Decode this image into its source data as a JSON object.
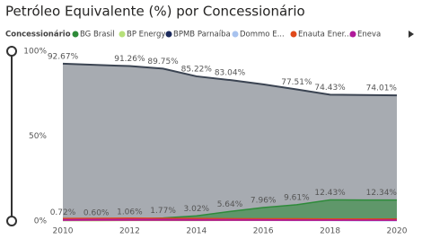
{
  "chart_data": {
    "type": "area",
    "title": "Petróleo Equivalente (%) por Concessionário",
    "legend_title": "Concessionário",
    "x": [
      2010,
      2011,
      2012,
      2013,
      2014,
      2015,
      2016,
      2017,
      2018,
      2019,
      2020
    ],
    "xlim": [
      2010,
      2020
    ],
    "xticks": [
      2010,
      2012,
      2014,
      2016,
      2018,
      2020
    ],
    "ylim": [
      0,
      100
    ],
    "yticks": [
      {
        "value": 0,
        "label": "0%"
      },
      {
        "value": 50,
        "label": "50%"
      },
      {
        "value": 100,
        "label": "100%"
      }
    ],
    "series": [
      {
        "color": "#3b4452",
        "values": [
          92.67,
          91.9,
          91.26,
          89.75,
          85.22,
          83.04,
          80.5,
          77.51,
          74.43,
          74.2,
          74.01
        ],
        "value_labels": [
          "92.67%",
          null,
          "91.26%",
          "89.75%",
          "85.22%",
          "83.04%",
          null,
          "77.51%",
          "74.43%",
          null,
          "74.01%"
        ]
      },
      {
        "name": "BG Brasil",
        "color": "#2e8b3a",
        "values": [
          0.72,
          0.6,
          1.06,
          1.77,
          3.02,
          5.64,
          7.96,
          9.61,
          12.43,
          12.4,
          12.34
        ],
        "value_labels": [
          "0.72%",
          "0.60%",
          "1.06%",
          "1.77%",
          "3.02%",
          "5.64%",
          "7.96%",
          "9.61%",
          "12.43%",
          null,
          "12.34%"
        ]
      },
      {
        "name": "BP Energy",
        "color": "#b6e07a",
        "values": [
          0.2,
          0.2,
          0.3,
          0.3,
          0.3,
          0.4,
          0.4,
          0.5,
          0.5,
          0.6,
          0.6
        ]
      },
      {
        "name": "BPMB Parnaíba",
        "color": "#1b2a5c",
        "values": [
          0.5,
          0.8,
          1.0,
          1.1,
          1.2,
          1.2,
          1.1,
          1.0,
          1.0,
          1.1,
          1.2
        ]
      },
      {
        "name": "Dommo E...",
        "color": "#a8c3ef",
        "values": [
          0.3,
          0.4,
          0.5,
          0.6,
          0.6,
          0.5,
          0.4,
          0.3,
          0.3,
          0.2,
          0.2
        ]
      },
      {
        "name": "Enauta Ener...",
        "color": "#e0491a",
        "values": [
          1.5,
          1.6,
          1.7,
          1.6,
          1.5,
          1.4,
          1.3,
          1.3,
          1.2,
          1.2,
          1.1
        ]
      },
      {
        "name": "Eneva",
        "color": "#b0199a",
        "values": [
          0.8,
          0.9,
          1.0,
          0.9,
          0.8,
          0.8,
          0.7,
          0.6,
          0.6,
          0.5,
          0.5
        ]
      }
    ]
  }
}
